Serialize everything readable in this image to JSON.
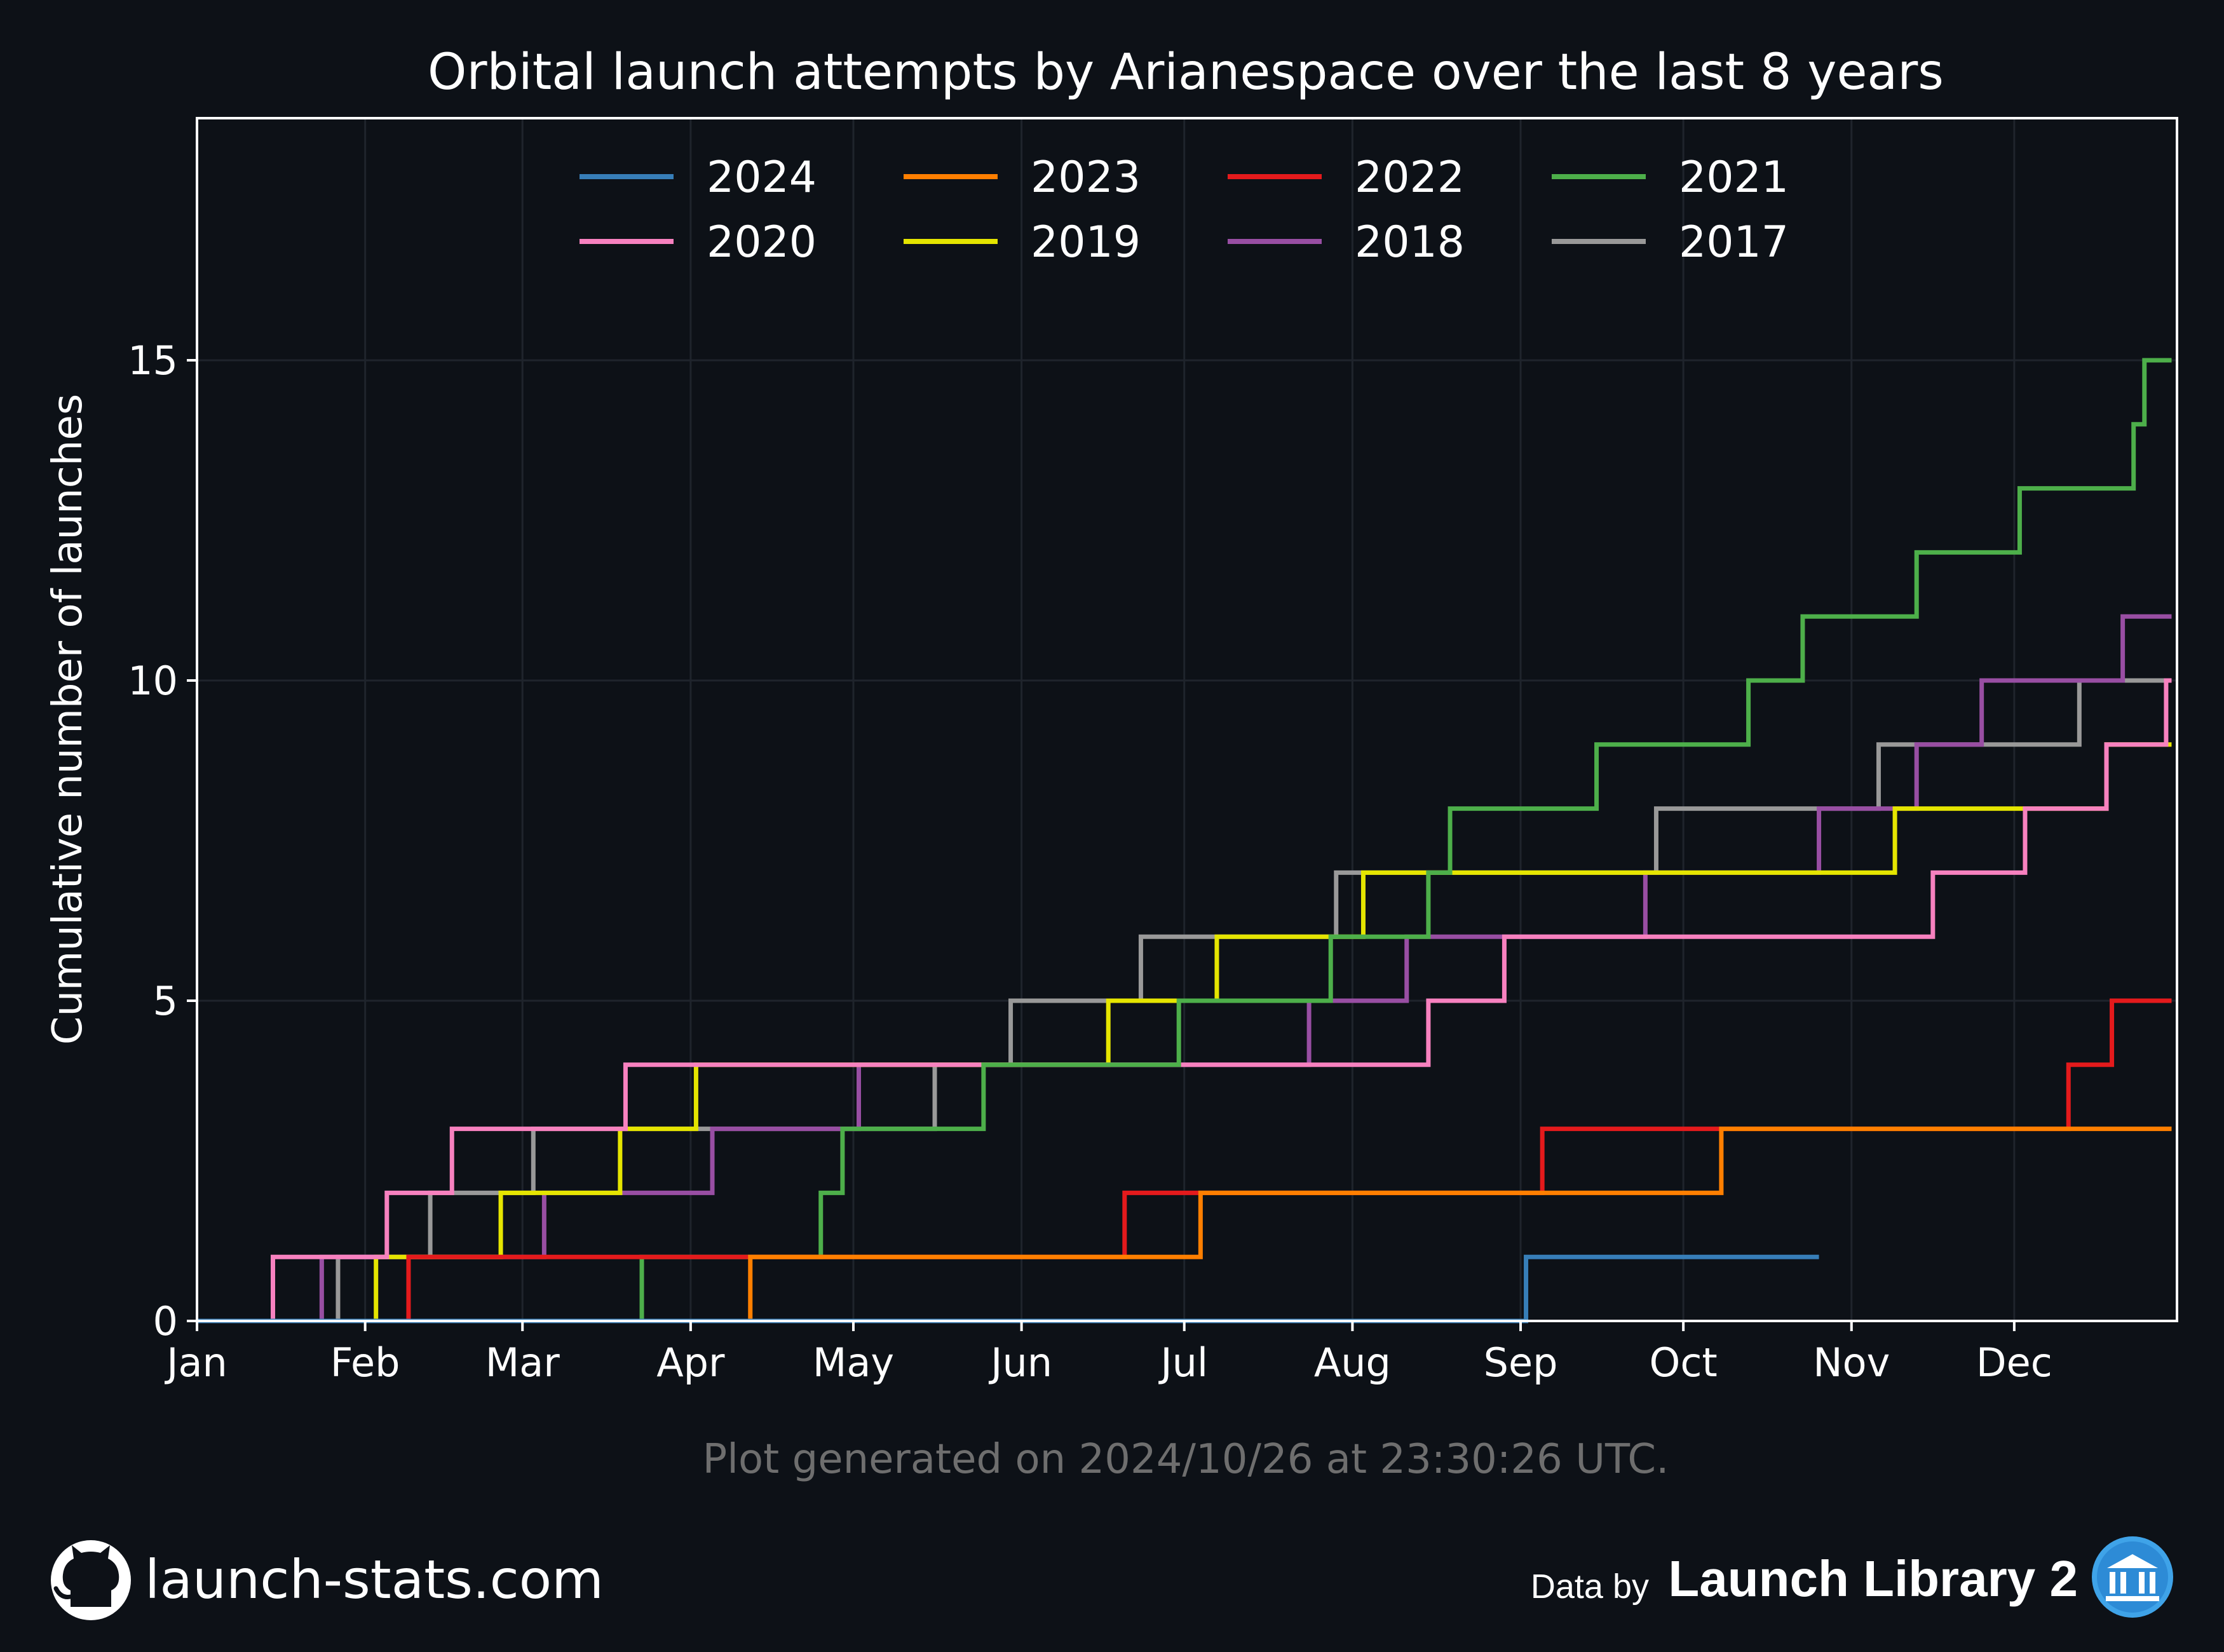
{
  "chart_data": {
    "type": "line",
    "step": true,
    "title": "Orbital launch attempts by Arianespace over the last 8 years",
    "xlabel": "",
    "ylabel": "Cumulative number of launches",
    "x_unit": "day of year",
    "xlim": [
      1,
      366
    ],
    "ylim": [
      0,
      15.5
    ],
    "x_ticks": [
      {
        "day": 1,
        "label": "Jan"
      },
      {
        "day": 32,
        "label": "Feb"
      },
      {
        "day": 61,
        "label": "Mar"
      },
      {
        "day": 92,
        "label": "Apr"
      },
      {
        "day": 122,
        "label": "May"
      },
      {
        "day": 153,
        "label": "Jun"
      },
      {
        "day": 183,
        "label": "Jul"
      },
      {
        "day": 214,
        "label": "Aug"
      },
      {
        "day": 245,
        "label": "Sep"
      },
      {
        "day": 275,
        "label": "Oct"
      },
      {
        "day": 306,
        "label": "Nov"
      },
      {
        "day": 336,
        "label": "Dec"
      }
    ],
    "y_ticks": [
      0,
      5,
      10,
      15
    ],
    "grid": true,
    "legend": {
      "placement": "top-center",
      "columns": 4
    },
    "series": [
      {
        "name": "2024",
        "color": "#377eb8",
        "end_day": 300,
        "launch_days": [
          246
        ]
      },
      {
        "name": "2023",
        "color": "#ff7f00",
        "end_day": 365,
        "launch_days": [
          103,
          186,
          282
        ]
      },
      {
        "name": "2022",
        "color": "#e41a1c",
        "end_day": 365,
        "launch_days": [
          40,
          172,
          249,
          346,
          354
        ]
      },
      {
        "name": "2021",
        "color": "#4daf4a",
        "end_day": 365,
        "launch_days": [
          83,
          116,
          120,
          146,
          182,
          210,
          228,
          232,
          259,
          287,
          297,
          318,
          337,
          358,
          360
        ]
      },
      {
        "name": "2020",
        "color": "#f781bf",
        "end_day": 365,
        "launch_days": [
          15,
          36,
          48,
          80,
          228,
          242,
          321,
          338,
          353,
          364
        ]
      },
      {
        "name": "2019",
        "color": "#e5e500",
        "end_day": 365,
        "launch_days": [
          34,
          57,
          79,
          93,
          169,
          189,
          216,
          314,
          353
        ]
      },
      {
        "name": "2018",
        "color": "#984ea3",
        "end_day": 365,
        "launch_days": [
          24,
          65,
          96,
          123,
          206,
          224,
          268,
          300,
          318,
          330,
          356
        ]
      },
      {
        "name": "2017",
        "color": "#999999",
        "end_day": 365,
        "launch_days": [
          27,
          44,
          63,
          137,
          151,
          175,
          211,
          270,
          311,
          348
        ]
      }
    ]
  },
  "footer": {
    "generated": "Plot generated on 2024/10/26 at 23:30:26 UTC.",
    "site": "launch-stats.com",
    "data_by": "Data by",
    "source": "Launch Library 2"
  }
}
